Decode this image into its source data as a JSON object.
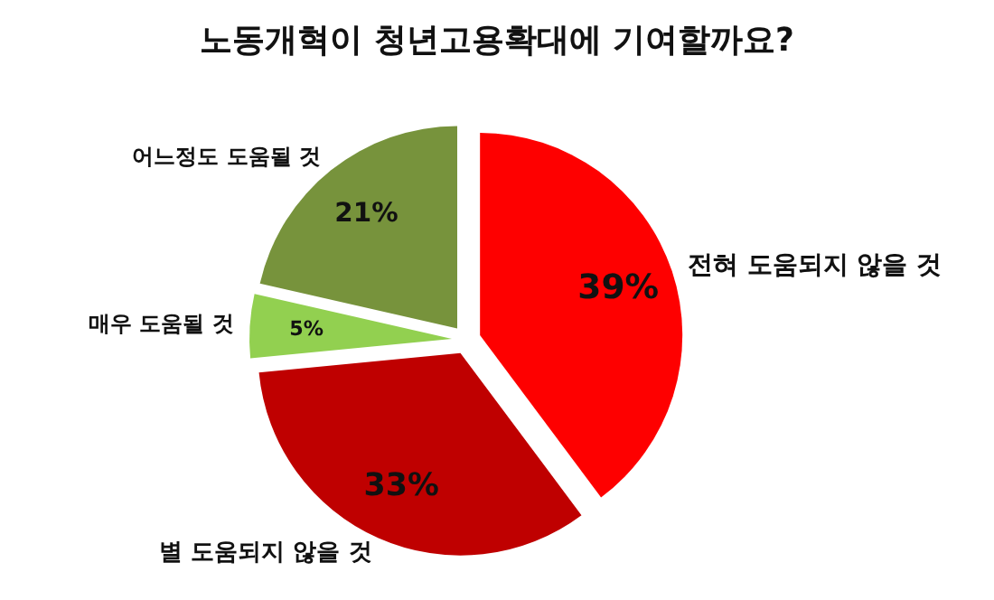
{
  "chart_data": {
    "type": "pie",
    "title": "노동개혁이 청년고용확대에 기여할까요?",
    "categories": [
      "전혀 도움되지 않을 것",
      "별 도움되지 않을 것",
      "매우 도움될 것",
      "어느정도 도움될 것"
    ],
    "values": [
      39,
      33,
      5,
      21
    ],
    "colors": [
      "#fe0000",
      "#bf0000",
      "#92d050",
      "#77933c"
    ],
    "value_labels": [
      "39%",
      "33%",
      "5%",
      "21%"
    ]
  }
}
